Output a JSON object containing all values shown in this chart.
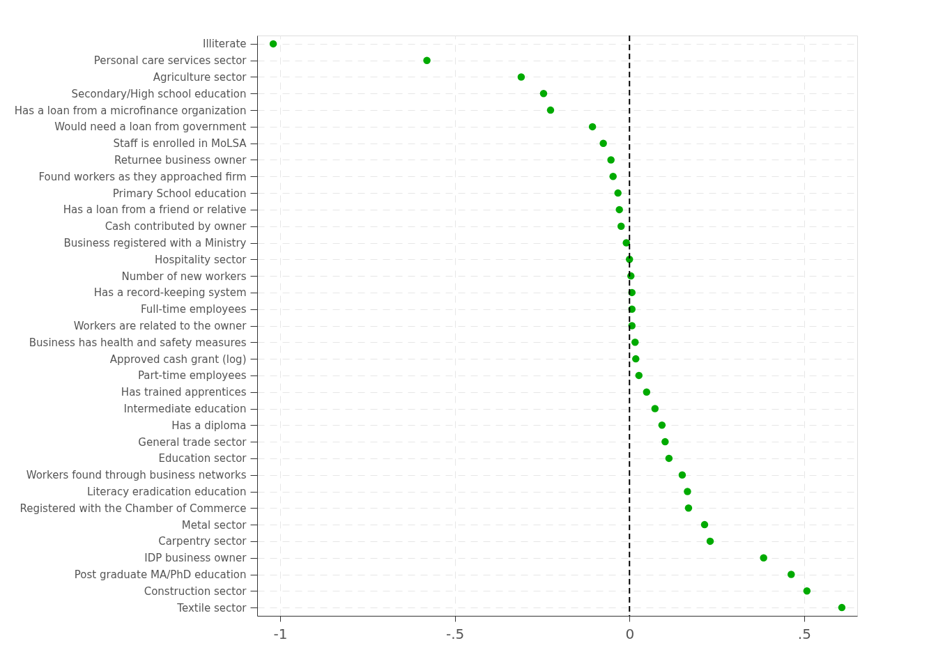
{
  "chart_data": {
    "type": "scatter",
    "orientation": "horizontal",
    "categories": [
      "Illiterate",
      "Personal care services sector",
      "Agriculture sector",
      "Secondary/High school education",
      "Has a loan from a microfinance organization",
      "Would need a loan from government",
      "Staff is enrolled in MoLSA",
      "Returnee business owner",
      "Found workers as they approached firm",
      "Primary School education",
      "Has a loan from a friend or relative",
      "Cash contributed by owner",
      "Business registered with a Ministry",
      "Hospitality sector",
      "Number of new workers",
      "Has a record-keeping system",
      "Full-time employees",
      "Workers are related to the owner",
      "Business has health and safety measures",
      "Approved cash grant (log)",
      "Part-time employees",
      "Has trained apprentices",
      "Intermediate education",
      "Has a diploma",
      "General trade sector",
      "Education sector",
      "Workers found through business networks",
      "Literacy eradication education",
      "Registered with the Chamber of Commerce",
      "Metal sector",
      "Carpentry sector",
      "IDP business owner",
      "Post graduate MA/PhD education",
      "Construction sector",
      "Textile sector"
    ],
    "series": [
      {
        "color": "#00aa00",
        "values": [
          -1.02,
          -0.58,
          -0.31,
          -0.246,
          -0.226,
          -0.106,
          -0.075,
          -0.053,
          -0.047,
          -0.033,
          -0.029,
          -0.024,
          -0.009,
          0.0,
          0.004,
          0.007,
          0.007,
          0.007,
          0.016,
          0.018,
          0.027,
          0.049,
          0.073,
          0.093,
          0.102,
          0.113,
          0.151,
          0.166,
          0.169,
          0.215,
          0.231,
          0.384,
          0.463,
          0.508,
          0.608
        ]
      }
    ],
    "xlim": [
      -1.066,
      0.652
    ],
    "xticks": [
      -1,
      {
        "value": -0.5,
        "label": "-.5"
      },
      0,
      {
        "value": 0.5,
        "label": ".5"
      }
    ],
    "ref_lines": [
      {
        "axis": "x",
        "value": 0,
        "color": "#000000",
        "line_style": "dashed"
      }
    ],
    "grid": true,
    "marker": "circle",
    "legend": false
  }
}
